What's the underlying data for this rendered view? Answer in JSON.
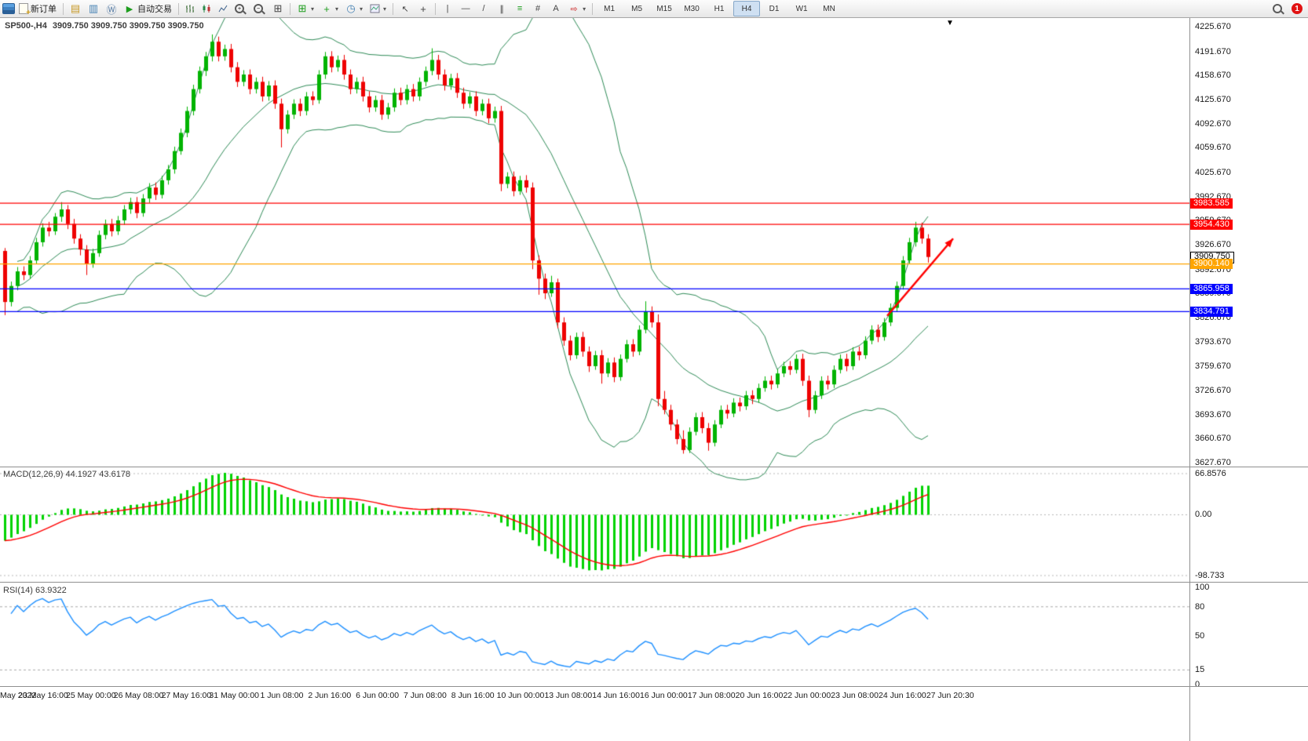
{
  "toolbar": {
    "new_order_label": "新订单",
    "autotrading_label": "自动交易",
    "timeframes": [
      "M1",
      "M5",
      "M15",
      "M30",
      "H1",
      "H4",
      "D1",
      "W1",
      "MN"
    ],
    "active_timeframe": "H4",
    "notification_count": "1"
  },
  "icons": {
    "caret": "▾",
    "market_watch": "▤",
    "data_window": "▥",
    "community": "Ⓦ",
    "play": "▶",
    "tile_windows": "⊞",
    "new_chart": "⊞",
    "clock": "◷",
    "indicators": "+",
    "zoom_in": "+",
    "zoom_out": "−",
    "cursor": "↖",
    "crosshair": "+",
    "vertical_line": "|",
    "horizontal_line": "—",
    "trendline": "/",
    "channel": "∥",
    "fibonacci": "≡",
    "andrews": "#",
    "text_tool": "A",
    "arrows_tool": "⇨",
    "shift_marker": "▼"
  },
  "chart_data": {
    "type": "candlestick",
    "symbol": "SP500-,H4",
    "ohlc_text": "3909.750 3909.750 3909.750 3909.750",
    "colors": {
      "up": "#00b300",
      "down": "#ee0000",
      "bollinger": "#2e8b57",
      "macd_bar": "#00d300",
      "macd_signal": "#ff0000",
      "rsi_line": "#1e90ff"
    },
    "price_axis_labels": [
      "4225.670",
      "4191.670",
      "4158.670",
      "4125.670",
      "4092.670",
      "4059.670",
      "4025.670",
      "3992.670",
      "3959.670",
      "3926.670",
      "3892.670",
      "3859.670",
      "3826.670",
      "3793.670",
      "3759.670",
      "3726.670",
      "3693.670",
      "3660.670",
      "3627.670"
    ],
    "hlines": [
      {
        "price": 3983.585,
        "label": "3983.585",
        "color": "#ff0000"
      },
      {
        "price": 3954.43,
        "label": "3954.430",
        "color": "#ff0000"
      },
      {
        "price": 3900.14,
        "label": "3900.140",
        "color": "#ffa500"
      },
      {
        "price": 3865.958,
        "label": "3865.958",
        "color": "#0000ff"
      },
      {
        "price": 3834.791,
        "label": "3834.791",
        "color": "#0000ff"
      }
    ],
    "current_price": {
      "value": 3909.75,
      "label": "3909.750"
    },
    "trend_arrow": {
      "from_bar": 140.5,
      "from_price": 3829,
      "to_bar": 151,
      "to_price": 3935,
      "color": "#ff0000"
    },
    "bollinger": {
      "period": 20,
      "deviation": 2
    },
    "macd": {
      "label": "MACD(12,26,9) 44.1927 43.6178",
      "params": [
        12,
        26,
        9
      ],
      "value": 44.1927,
      "signal_value": 43.6178,
      "scale_labels": [
        "66.8576",
        "0.00",
        "-98.733"
      ],
      "scale_values": [
        66.8576,
        0,
        -98.733
      ]
    },
    "rsi": {
      "label": "RSI(14) 63.9322",
      "period": 14,
      "value": 63.9322,
      "scale_labels": [
        "100",
        "80",
        "50",
        "15",
        "0"
      ],
      "scale_values": [
        100,
        80,
        50,
        15,
        0
      ],
      "levels": [
        80,
        15
      ]
    },
    "date_axis_labels": [
      "May 2022",
      "23 May 16:00",
      "25 May 00:00",
      "26 May 08:00",
      "27 May 16:00",
      "31 May 00:00",
      "1 Jun 08:00",
      "2 Jun 16:00",
      "6 Jun 00:00",
      "7 Jun 08:00",
      "8 Jun 16:00",
      "10 Jun 00:00",
      "13 Jun 08:00",
      "14 Jun 16:00",
      "16 Jun 00:00",
      "17 Jun 08:00",
      "20 Jun 16:00",
      "22 Jun 00:00",
      "23 Jun 08:00",
      "24 Jun 16:00",
      "27 Jun 20:30"
    ],
    "candles": [
      [
        3918,
        3922,
        3830,
        3848
      ],
      [
        3848,
        3876,
        3842,
        3870
      ],
      [
        3870,
        3896,
        3864,
        3890
      ],
      [
        3890,
        3897,
        3878,
        3885
      ],
      [
        3885,
        3911,
        3880,
        3905
      ],
      [
        3905,
        3936,
        3900,
        3930
      ],
      [
        3930,
        3956,
        3924,
        3950
      ],
      [
        3950,
        3958,
        3938,
        3945
      ],
      [
        3945,
        3970,
        3940,
        3965
      ],
      [
        3965,
        3985,
        3958,
        3975
      ],
      [
        3975,
        3981,
        3948,
        3955
      ],
      [
        3955,
        3962,
        3928,
        3935
      ],
      [
        3935,
        3941,
        3912,
        3920
      ],
      [
        3920,
        3926,
        3885,
        3900
      ],
      [
        3900,
        3921,
        3895,
        3915
      ],
      [
        3915,
        3946,
        3910,
        3940
      ],
      [
        3940,
        3961,
        3934,
        3955
      ],
      [
        3955,
        3962,
        3938,
        3945
      ],
      [
        3945,
        3966,
        3940,
        3960
      ],
      [
        3960,
        3981,
        3954,
        3975
      ],
      [
        3975,
        3991,
        3969,
        3985
      ],
      [
        3985,
        3992,
        3963,
        3970
      ],
      [
        3970,
        3996,
        3965,
        3990
      ],
      [
        3990,
        4011,
        3984,
        4005
      ],
      [
        4005,
        4012,
        3988,
        3995
      ],
      [
        3995,
        4021,
        3990,
        4015
      ],
      [
        4015,
        4036,
        4009,
        4030
      ],
      [
        4030,
        4061,
        4024,
        4055
      ],
      [
        4055,
        4086,
        4050,
        4080
      ],
      [
        4080,
        4116,
        4074,
        4110
      ],
      [
        4110,
        4146,
        4104,
        4140
      ],
      [
        4140,
        4171,
        4134,
        4165
      ],
      [
        4165,
        4191,
        4158,
        4185
      ],
      [
        4185,
        4215,
        4178,
        4205
      ],
      [
        4205,
        4212,
        4178,
        4185
      ],
      [
        4185,
        4201,
        4179,
        4195
      ],
      [
        4195,
        4202,
        4163,
        4170
      ],
      [
        4170,
        4177,
        4143,
        4150
      ],
      [
        4150,
        4166,
        4144,
        4160
      ],
      [
        4160,
        4167,
        4133,
        4140
      ],
      [
        4140,
        4156,
        4134,
        4150
      ],
      [
        4150,
        4157,
        4123,
        4130
      ],
      [
        4130,
        4151,
        4124,
        4145
      ],
      [
        4145,
        4152,
        4113,
        4120
      ],
      [
        4120,
        4127,
        4060,
        4085
      ],
      [
        4085,
        4111,
        4079,
        4105
      ],
      [
        4105,
        4126,
        4099,
        4120
      ],
      [
        4120,
        4127,
        4103,
        4110
      ],
      [
        4110,
        4136,
        4104,
        4130
      ],
      [
        4130,
        4137,
        4118,
        4125
      ],
      [
        4125,
        4166,
        4120,
        4160
      ],
      [
        4160,
        4191,
        4154,
        4185
      ],
      [
        4185,
        4192,
        4163,
        4170
      ],
      [
        4170,
        4186,
        4164,
        4180
      ],
      [
        4180,
        4187,
        4153,
        4160
      ],
      [
        4160,
        4167,
        4133,
        4140
      ],
      [
        4140,
        4156,
        4134,
        4150
      ],
      [
        4150,
        4157,
        4123,
        4130
      ],
      [
        4130,
        4137,
        4108,
        4115
      ],
      [
        4115,
        4131,
        4109,
        4125
      ],
      [
        4125,
        4132,
        4098,
        4105
      ],
      [
        4105,
        4121,
        4099,
        4115
      ],
      [
        4115,
        4141,
        4109,
        4135
      ],
      [
        4135,
        4142,
        4118,
        4125
      ],
      [
        4125,
        4146,
        4119,
        4140
      ],
      [
        4140,
        4147,
        4123,
        4130
      ],
      [
        4130,
        4156,
        4124,
        4150
      ],
      [
        4150,
        4171,
        4144,
        4165
      ],
      [
        4165,
        4196,
        4159,
        4180
      ],
      [
        4180,
        4187,
        4153,
        4160
      ],
      [
        4160,
        4167,
        4138,
        4145
      ],
      [
        4145,
        4161,
        4139,
        4155
      ],
      [
        4155,
        4162,
        4128,
        4135
      ],
      [
        4135,
        4142,
        4113,
        4120
      ],
      [
        4120,
        4136,
        4114,
        4130
      ],
      [
        4130,
        4137,
        4103,
        4110
      ],
      [
        4110,
        4126,
        4104,
        4120
      ],
      [
        4120,
        4127,
        4093,
        4100
      ],
      [
        4100,
        4116,
        4094,
        4110
      ],
      [
        4110,
        4117,
        4000,
        4010
      ],
      [
        4010,
        4026,
        4004,
        4020
      ],
      [
        4020,
        4027,
        3993,
        4000
      ],
      [
        4000,
        4021,
        3995,
        4015
      ],
      [
        4015,
        4022,
        3998,
        4005
      ],
      [
        4005,
        4012,
        3893,
        3905
      ],
      [
        3905,
        3912,
        3858,
        3880
      ],
      [
        3880,
        3887,
        3852,
        3860
      ],
      [
        3860,
        3884,
        3855,
        3875
      ],
      [
        3875,
        3880,
        3812,
        3820
      ],
      [
        3820,
        3827,
        3788,
        3795
      ],
      [
        3795,
        3802,
        3768,
        3775
      ],
      [
        3775,
        3806,
        3770,
        3800
      ],
      [
        3800,
        3807,
        3773,
        3780
      ],
      [
        3780,
        3787,
        3752,
        3760
      ],
      [
        3760,
        3781,
        3755,
        3775
      ],
      [
        3775,
        3782,
        3736,
        3750
      ],
      [
        3750,
        3771,
        3745,
        3765
      ],
      [
        3765,
        3772,
        3738,
        3745
      ],
      [
        3745,
        3776,
        3740,
        3770
      ],
      [
        3770,
        3796,
        3765,
        3790
      ],
      [
        3790,
        3797,
        3773,
        3780
      ],
      [
        3780,
        3816,
        3775,
        3810
      ],
      [
        3810,
        3849,
        3805,
        3835
      ],
      [
        3835,
        3842,
        3813,
        3820
      ],
      [
        3820,
        3831,
        3705,
        3715
      ],
      [
        3715,
        3726,
        3694,
        3700
      ],
      [
        3700,
        3707,
        3672,
        3680
      ],
      [
        3680,
        3687,
        3653,
        3660
      ],
      [
        3660,
        3672,
        3640,
        3645
      ],
      [
        3645,
        3676,
        3641,
        3670
      ],
      [
        3670,
        3696,
        3665,
        3690
      ],
      [
        3690,
        3697,
        3668,
        3675
      ],
      [
        3675,
        3682,
        3644,
        3655
      ],
      [
        3655,
        3686,
        3650,
        3680
      ],
      [
        3680,
        3706,
        3675,
        3700
      ],
      [
        3700,
        3707,
        3688,
        3695
      ],
      [
        3695,
        3716,
        3690,
        3710
      ],
      [
        3710,
        3717,
        3698,
        3705
      ],
      [
        3705,
        3726,
        3700,
        3720
      ],
      [
        3720,
        3727,
        3708,
        3715
      ],
      [
        3715,
        3736,
        3710,
        3730
      ],
      [
        3730,
        3746,
        3725,
        3740
      ],
      [
        3740,
        3747,
        3728,
        3735
      ],
      [
        3735,
        3756,
        3730,
        3750
      ],
      [
        3750,
        3766,
        3745,
        3760
      ],
      [
        3760,
        3767,
        3748,
        3755
      ],
      [
        3755,
        3776,
        3750,
        3770
      ],
      [
        3770,
        3777,
        3733,
        3740
      ],
      [
        3740,
        3747,
        3690,
        3700
      ],
      [
        3700,
        3726,
        3695,
        3720
      ],
      [
        3720,
        3746,
        3715,
        3740
      ],
      [
        3740,
        3747,
        3728,
        3735
      ],
      [
        3735,
        3761,
        3730,
        3755
      ],
      [
        3755,
        3776,
        3750,
        3770
      ],
      [
        3770,
        3777,
        3753,
        3760
      ],
      [
        3760,
        3786,
        3755,
        3780
      ],
      [
        3780,
        3787,
        3768,
        3775
      ],
      [
        3775,
        3801,
        3770,
        3795
      ],
      [
        3795,
        3816,
        3790,
        3810
      ],
      [
        3810,
        3817,
        3793,
        3800
      ],
      [
        3800,
        3826,
        3795,
        3820
      ],
      [
        3820,
        3846,
        3815,
        3840
      ],
      [
        3840,
        3876,
        3835,
        3870
      ],
      [
        3870,
        3911,
        3865,
        3905
      ],
      [
        3905,
        3936,
        3900,
        3930
      ],
      [
        3930,
        3958,
        3924,
        3950
      ],
      [
        3950,
        3957,
        3928,
        3935
      ],
      [
        3935,
        3941,
        3902,
        3909.75
      ]
    ]
  }
}
